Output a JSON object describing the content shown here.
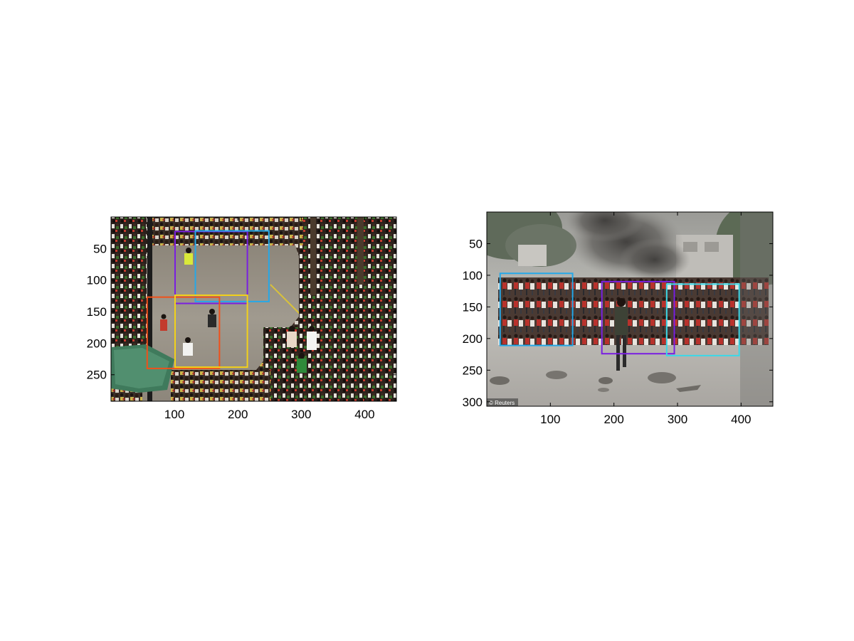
{
  "figure": {
    "panels": [
      {
        "id": "left",
        "image_description_tag": "crowd-street-photo",
        "xlim": [
          0,
          450
        ],
        "ylim": [
          0,
          292
        ],
        "x_ticks": [
          100,
          200,
          300,
          400
        ],
        "y_ticks": [
          50,
          100,
          150,
          200,
          250
        ],
        "boxes": [
          {
            "color": "#7a1fe0",
            "x0": 101,
            "y0": 23,
            "x1": 215,
            "y1": 137
          },
          {
            "color": "#25a8e8",
            "x0": 133,
            "y0": 22,
            "x1": 249,
            "y1": 134
          },
          {
            "color": "#f0501a",
            "x0": 57,
            "y0": 127,
            "x1": 171,
            "y1": 240
          },
          {
            "color": "#f2d11a",
            "x0": 101,
            "y0": 124,
            "x1": 215,
            "y1": 238
          }
        ]
      },
      {
        "id": "right",
        "image_description_tag": "running-crowd-photo",
        "xlim": [
          0,
          450
        ],
        "ylim": [
          0,
          307
        ],
        "x_ticks": [
          100,
          200,
          300,
          400
        ],
        "y_ticks": [
          50,
          100,
          150,
          200,
          250,
          300
        ],
        "watermark": "© Reuters",
        "boxes": [
          {
            "color": "#25a8e8",
            "x0": 21,
            "y0": 97,
            "x1": 135,
            "y1": 211
          },
          {
            "color": "#7a1fe0",
            "x0": 181,
            "y0": 110,
            "x1": 295,
            "y1": 224
          },
          {
            "color": "#3ad8e8",
            "x0": 283,
            "y0": 114,
            "x1": 397,
            "y1": 227
          }
        ]
      }
    ]
  }
}
